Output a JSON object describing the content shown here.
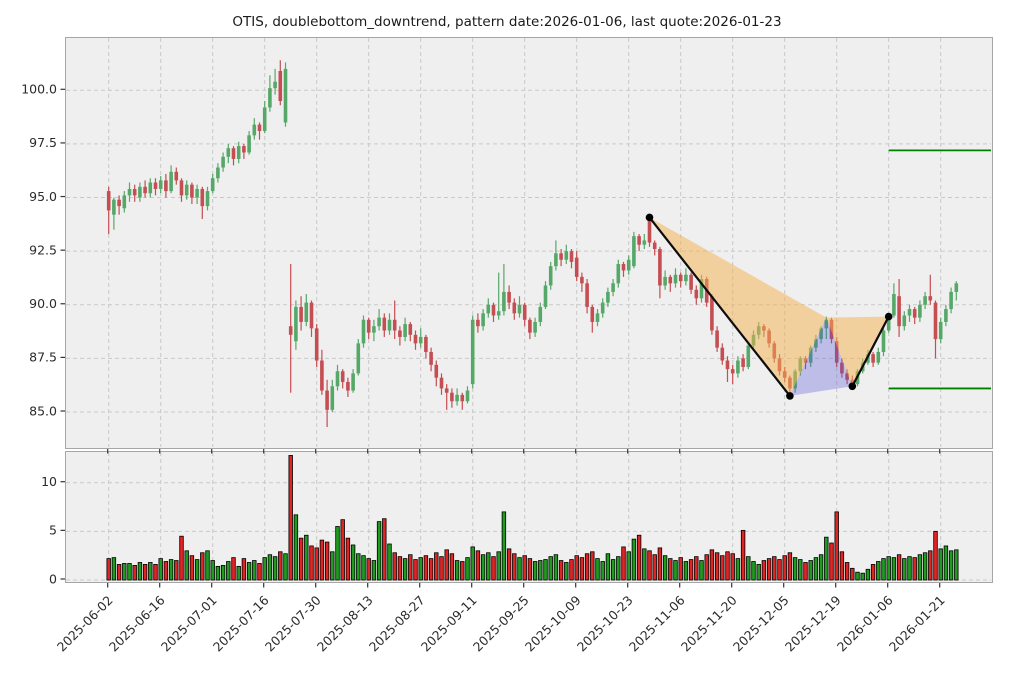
{
  "title": "OTIS, doublebottom_downtrend, pattern date:2026-01-06, last quote:2026-01-23",
  "chart_data": {
    "type": "candlestick+volume",
    "symbol": "OTIS",
    "pattern_name": "doublebottom_downtrend",
    "pattern_date": "2026-01-06",
    "last_quote_date": "2026-01-23",
    "x_tick_labels": [
      "2025-06-02",
      "2025-06-16",
      "2025-07-01",
      "2025-07-16",
      "2025-07-30",
      "2025-08-13",
      "2025-08-27",
      "2025-09-11",
      "2025-09-25",
      "2025-10-09",
      "2025-10-23",
      "2025-11-06",
      "2025-11-20",
      "2025-12-05",
      "2025-12-19",
      "2026-01-06",
      "2026-01-21"
    ],
    "x_tick_indices": [
      0,
      10,
      20,
      30,
      40,
      50,
      60,
      70,
      80,
      90,
      100,
      110,
      120,
      130,
      140,
      150,
      160
    ],
    "price_ticks": [
      85.0,
      87.5,
      90.0,
      92.5,
      95.0,
      97.5,
      100.0
    ],
    "volume_ticks": [
      0,
      5,
      10
    ],
    "candles_format": [
      "open",
      "high",
      "low",
      "close",
      "volume"
    ],
    "candles": [
      [
        95.3,
        95.5,
        93.3,
        94.4,
        2.2
      ],
      [
        94.2,
        95.0,
        93.5,
        94.9,
        2.3
      ],
      [
        94.9,
        95.1,
        94.2,
        94.6,
        1.6
      ],
      [
        94.5,
        95.3,
        94.3,
        95.1,
        1.7
      ],
      [
        95.1,
        95.7,
        94.8,
        95.4,
        1.7
      ],
      [
        95.4,
        95.6,
        94.8,
        95.1,
        1.5
      ],
      [
        95.0,
        95.7,
        94.8,
        95.5,
        1.8
      ],
      [
        95.5,
        95.8,
        95.0,
        95.2,
        1.6
      ],
      [
        95.2,
        95.9,
        95.0,
        95.7,
        1.8
      ],
      [
        95.7,
        95.9,
        95.1,
        95.4,
        1.6
      ],
      [
        95.4,
        96.0,
        95.2,
        95.8,
        2.2
      ],
      [
        95.8,
        96.1,
        95.0,
        95.3,
        1.9
      ],
      [
        95.3,
        96.5,
        95.2,
        96.2,
        2.1
      ],
      [
        96.2,
        96.4,
        95.6,
        95.8,
        2.0
      ],
      [
        95.8,
        95.9,
        94.8,
        95.1,
        4.5
      ],
      [
        95.1,
        95.8,
        94.9,
        95.6,
        3.0
      ],
      [
        95.6,
        95.7,
        94.7,
        95.0,
        2.5
      ],
      [
        95.0,
        95.6,
        94.7,
        95.4,
        2.1
      ],
      [
        95.4,
        95.5,
        94.0,
        94.6,
        2.8
      ],
      [
        94.6,
        95.5,
        94.4,
        95.3,
        3.0
      ],
      [
        95.3,
        96.1,
        95.2,
        95.9,
        2.0
      ],
      [
        95.9,
        96.6,
        95.7,
        96.4,
        1.4
      ],
      [
        96.4,
        97.1,
        96.2,
        96.9,
        1.5
      ],
      [
        96.9,
        97.5,
        96.6,
        97.3,
        1.9
      ],
      [
        97.3,
        97.4,
        96.5,
        96.8,
        2.3
      ],
      [
        96.8,
        97.6,
        96.6,
        97.4,
        1.4
      ],
      [
        97.4,
        97.5,
        96.8,
        97.1,
        2.2
      ],
      [
        97.1,
        98.1,
        97.0,
        97.9,
        1.8
      ],
      [
        97.9,
        98.7,
        97.7,
        98.4,
        2.0
      ],
      [
        98.4,
        98.5,
        97.7,
        98.1,
        1.7
      ],
      [
        98.1,
        99.5,
        98.0,
        99.2,
        2.3
      ],
      [
        99.2,
        100.7,
        99.0,
        100.1,
        2.6
      ],
      [
        100.1,
        101.0,
        99.8,
        100.4,
        2.4
      ],
      [
        100.9,
        101.4,
        99.3,
        99.5,
        2.9
      ],
      [
        98.5,
        101.3,
        98.3,
        101.0,
        2.7
      ],
      [
        89.0,
        91.9,
        85.9,
        88.6,
        12.8
      ],
      [
        88.3,
        90.2,
        87.9,
        89.9,
        6.7
      ],
      [
        89.9,
        90.4,
        88.8,
        89.2,
        4.3
      ],
      [
        89.2,
        90.5,
        89.0,
        90.1,
        4.6
      ],
      [
        90.1,
        90.2,
        88.5,
        88.9,
        3.5
      ],
      [
        88.9,
        89.1,
        87.1,
        87.4,
        3.3
      ],
      [
        87.4,
        87.9,
        85.8,
        86.0,
        4.1
      ],
      [
        86.0,
        86.5,
        84.3,
        85.1,
        3.9
      ],
      [
        85.1,
        86.5,
        85.0,
        86.2,
        2.9
      ],
      [
        86.2,
        87.2,
        86.0,
        86.9,
        5.5
      ],
      [
        86.9,
        87.0,
        86.1,
        86.4,
        6.2
      ],
      [
        86.4,
        86.6,
        85.7,
        86.0,
        4.3
      ],
      [
        86.0,
        87.0,
        85.9,
        86.8,
        3.6
      ],
      [
        86.8,
        88.4,
        86.7,
        88.2,
        2.7
      ],
      [
        88.2,
        89.5,
        88.0,
        89.3,
        2.5
      ],
      [
        89.3,
        89.4,
        88.4,
        88.7,
        2.2
      ],
      [
        88.7,
        89.3,
        88.3,
        89.0,
        2.0
      ],
      [
        89.0,
        89.8,
        88.8,
        89.4,
        6.0
      ],
      [
        89.4,
        89.6,
        88.5,
        88.8,
        6.3
      ],
      [
        88.8,
        89.6,
        88.6,
        89.3,
        3.7
      ],
      [
        89.3,
        90.2,
        88.4,
        88.8,
        2.8
      ],
      [
        88.8,
        89.0,
        88.1,
        88.5,
        2.4
      ],
      [
        88.5,
        89.4,
        88.3,
        89.1,
        2.2
      ],
      [
        89.1,
        89.2,
        88.3,
        88.6,
        2.6
      ],
      [
        88.6,
        88.8,
        87.9,
        88.2,
        2.1
      ],
      [
        88.2,
        88.9,
        88.0,
        88.5,
        2.3
      ],
      [
        88.5,
        88.6,
        87.5,
        87.8,
        2.5
      ],
      [
        87.8,
        88.0,
        86.9,
        87.2,
        2.2
      ],
      [
        87.2,
        87.4,
        86.2,
        86.6,
        2.8
      ],
      [
        86.6,
        86.8,
        85.8,
        86.1,
        2.4
      ],
      [
        86.1,
        86.3,
        85.1,
        85.9,
        3.1
      ],
      [
        85.9,
        86.1,
        85.2,
        85.5,
        2.7
      ],
      [
        85.5,
        86.1,
        85.3,
        85.8,
        2.0
      ],
      [
        85.8,
        85.9,
        85.1,
        85.5,
        1.9
      ],
      [
        85.5,
        86.2,
        85.4,
        86.0,
        2.3
      ],
      [
        86.3,
        89.5,
        86.1,
        89.3,
        3.4
      ],
      [
        89.3,
        89.6,
        88.7,
        89.0,
        3.0
      ],
      [
        89.0,
        89.8,
        88.8,
        89.6,
        2.6
      ],
      [
        89.6,
        90.3,
        89.4,
        90.0,
        2.8
      ],
      [
        90.0,
        90.1,
        89.2,
        89.5,
        2.4
      ],
      [
        89.5,
        91.5,
        89.3,
        89.7,
        2.9
      ],
      [
        89.7,
        91.9,
        89.5,
        90.6,
        7.0
      ],
      [
        90.6,
        90.9,
        89.8,
        90.1,
        3.2
      ],
      [
        90.1,
        90.3,
        89.3,
        89.6,
        2.7
      ],
      [
        89.6,
        90.4,
        89.4,
        90.0,
        2.3
      ],
      [
        90.0,
        90.1,
        89.0,
        89.3,
        2.5
      ],
      [
        89.3,
        89.4,
        88.4,
        88.7,
        2.2
      ],
      [
        88.7,
        89.4,
        88.5,
        89.2,
        1.9
      ],
      [
        89.2,
        90.1,
        89.0,
        89.9,
        2.0
      ],
      [
        89.9,
        91.1,
        89.8,
        90.9,
        2.1
      ],
      [
        90.9,
        92.0,
        90.7,
        91.8,
        2.4
      ],
      [
        91.8,
        93.0,
        91.6,
        92.4,
        2.6
      ],
      [
        92.4,
        92.6,
        91.8,
        92.1,
        2.0
      ],
      [
        92.1,
        92.8,
        91.9,
        92.5,
        1.8
      ],
      [
        92.5,
        92.6,
        91.7,
        92.0,
        2.1
      ],
      [
        92.2,
        92.5,
        91.1,
        91.3,
        2.5
      ],
      [
        91.3,
        91.5,
        90.6,
        91.0,
        2.3
      ],
      [
        91.0,
        91.2,
        89.6,
        89.9,
        2.7
      ],
      [
        89.9,
        90.0,
        88.7,
        89.2,
        2.9
      ],
      [
        89.2,
        89.8,
        89.0,
        89.6,
        2.2
      ],
      [
        89.6,
        90.3,
        89.4,
        90.1,
        1.9
      ],
      [
        90.1,
        90.8,
        89.9,
        90.6,
        2.7
      ],
      [
        90.6,
        91.2,
        90.4,
        91.0,
        2.1
      ],
      [
        91.0,
        92.1,
        90.8,
        91.9,
        2.4
      ],
      [
        91.9,
        92.0,
        91.3,
        91.6,
        3.4
      ],
      [
        91.6,
        92.3,
        91.4,
        92.1,
        2.9
      ],
      [
        91.8,
        93.4,
        91.7,
        93.2,
        4.2
      ],
      [
        93.2,
        93.3,
        92.5,
        92.8,
        4.6
      ],
      [
        92.8,
        93.3,
        92.6,
        93.0,
        3.2
      ],
      [
        93.9,
        94.1,
        92.7,
        92.9,
        3.0
      ],
      [
        92.9,
        93.0,
        92.3,
        92.6,
        2.6
      ],
      [
        92.6,
        92.7,
        90.3,
        90.9,
        3.3
      ],
      [
        90.9,
        91.6,
        90.7,
        91.3,
        2.5
      ],
      [
        91.3,
        91.4,
        90.6,
        91.0,
        2.2
      ],
      [
        91.0,
        91.7,
        90.8,
        91.4,
        2.0
      ],
      [
        91.4,
        91.5,
        90.8,
        91.1,
        2.3
      ],
      [
        91.1,
        91.7,
        90.9,
        91.4,
        1.9
      ],
      [
        91.4,
        91.5,
        90.5,
        90.7,
        2.1
      ],
      [
        90.7,
        90.9,
        90.0,
        90.3,
        2.4
      ],
      [
        90.3,
        91.4,
        90.1,
        91.2,
        2.0
      ],
      [
        91.2,
        91.3,
        89.9,
        90.1,
        2.6
      ],
      [
        90.4,
        90.5,
        88.6,
        88.8,
        3.1
      ],
      [
        88.8,
        89.0,
        87.8,
        88.0,
        2.8
      ],
      [
        88.0,
        88.2,
        87.2,
        87.4,
        2.5
      ],
      [
        87.4,
        87.6,
        86.4,
        87.0,
        2.9
      ],
      [
        87.0,
        87.2,
        86.3,
        86.8,
        2.7
      ],
      [
        86.8,
        87.6,
        86.6,
        87.4,
        2.2
      ],
      [
        87.5,
        87.7,
        86.9,
        87.1,
        5.1
      ],
      [
        87.1,
        88.2,
        87.0,
        88.1,
        2.4
      ],
      [
        88.1,
        88.8,
        87.9,
        88.6,
        1.9
      ],
      [
        88.6,
        89.2,
        88.4,
        89.0,
        1.6
      ],
      [
        89.0,
        89.1,
        88.5,
        88.8,
        2.0
      ],
      [
        88.8,
        88.9,
        88.0,
        88.2,
        2.2
      ],
      [
        88.2,
        88.3,
        87.3,
        87.5,
        2.4
      ],
      [
        87.5,
        87.7,
        86.7,
        86.9,
        2.1
      ],
      [
        86.9,
        87.1,
        86.4,
        86.6,
        2.5
      ],
      [
        86.6,
        86.7,
        85.7,
        86.1,
        2.8
      ],
      [
        86.1,
        87.0,
        85.9,
        86.9,
        2.3
      ],
      [
        86.9,
        87.6,
        86.7,
        87.5,
        2.1
      ],
      [
        87.5,
        87.6,
        87.0,
        87.3,
        1.8
      ],
      [
        87.3,
        88.1,
        87.1,
        88.0,
        2.0
      ],
      [
        88.0,
        88.6,
        87.8,
        88.4,
        2.3
      ],
      [
        88.4,
        89.0,
        88.2,
        88.9,
        2.6
      ],
      [
        88.9,
        89.45,
        88.4,
        89.3,
        4.4
      ],
      [
        89.3,
        89.4,
        88.2,
        88.4,
        3.8
      ],
      [
        88.3,
        88.5,
        87.1,
        87.3,
        7.0
      ],
      [
        87.3,
        87.5,
        86.6,
        86.8,
        2.9
      ],
      [
        86.8,
        87.0,
        86.3,
        86.5,
        1.8
      ],
      [
        86.5,
        86.7,
        86.15,
        86.3,
        1.2
      ],
      [
        86.3,
        87.0,
        86.2,
        86.9,
        0.8
      ],
      [
        86.9,
        87.5,
        86.8,
        87.3,
        0.7
      ],
      [
        87.3,
        87.9,
        87.2,
        87.7,
        1.1
      ],
      [
        87.7,
        87.8,
        87.1,
        87.3,
        1.6
      ],
      [
        87.3,
        88.0,
        87.2,
        87.8,
        1.9
      ],
      [
        87.8,
        88.9,
        87.6,
        88.8,
        2.2
      ],
      [
        88.8,
        89.6,
        88.7,
        89.5,
        2.4
      ],
      [
        89.5,
        91.0,
        89.4,
        90.5,
        2.3
      ],
      [
        90.4,
        91.2,
        88.5,
        89.0,
        2.6
      ],
      [
        89.0,
        89.7,
        88.8,
        89.5,
        2.2
      ],
      [
        89.5,
        90.0,
        89.2,
        89.8,
        2.4
      ],
      [
        89.8,
        89.9,
        89.1,
        89.4,
        2.3
      ],
      [
        89.4,
        90.2,
        89.2,
        90.0,
        2.6
      ],
      [
        90.0,
        90.6,
        89.8,
        90.4,
        2.8
      ],
      [
        90.4,
        91.4,
        90.0,
        90.2,
        3.0
      ],
      [
        90.1,
        90.2,
        87.5,
        88.4,
        5.0
      ],
      [
        88.4,
        89.4,
        88.2,
        89.2,
        3.2
      ],
      [
        89.2,
        90.0,
        89.0,
        89.8,
        3.5
      ],
      [
        89.8,
        90.8,
        89.6,
        90.6,
        3.0
      ],
      [
        90.6,
        91.1,
        90.2,
        91.0,
        3.1
      ]
    ],
    "pattern_points": {
      "W": {
        "index": 104,
        "price": 94.07
      },
      "X": {
        "index": 131,
        "price": 85.75
      },
      "Y": {
        "index": 138,
        "price": 89.4
      },
      "Z": {
        "index": 143,
        "price": 86.2
      },
      "D": {
        "index": 150,
        "price": 89.45
      }
    },
    "pattern_lines": [
      [
        "W",
        "X"
      ],
      [
        "Z",
        "D"
      ]
    ],
    "pattern_dots": [
      "W",
      "X",
      "Z",
      "D"
    ],
    "pattern_polygons": [
      {
        "points": [
          "W",
          "Y",
          "X"
        ],
        "fill": "rgba(243,178,77,0.5)"
      },
      {
        "points": [
          "Y",
          "D",
          "Z"
        ],
        "fill": "rgba(243,178,77,0.5)"
      },
      {
        "points": [
          "X",
          "Y",
          "Z"
        ],
        "fill": "rgba(85,85,215,0.32)"
      }
    ],
    "target_lines": [
      {
        "price": 97.2,
        "from_index": 150
      },
      {
        "price": 86.1,
        "from_index": 150
      }
    ],
    "colors": {
      "candle_up": "#55a868",
      "candle_down": "#c44e52",
      "volume_up": "#1f9c1f",
      "volume_down": "#e02424",
      "volume_edge": "#000000",
      "target_line": "#008000",
      "pattern_line": "#0d0d0d",
      "pattern_dot": "#000000",
      "panel_bg": "#efefef",
      "grid": "#c9c9c9",
      "tick_text": "#2b2b2b"
    },
    "grid": true,
    "legend": "none"
  }
}
